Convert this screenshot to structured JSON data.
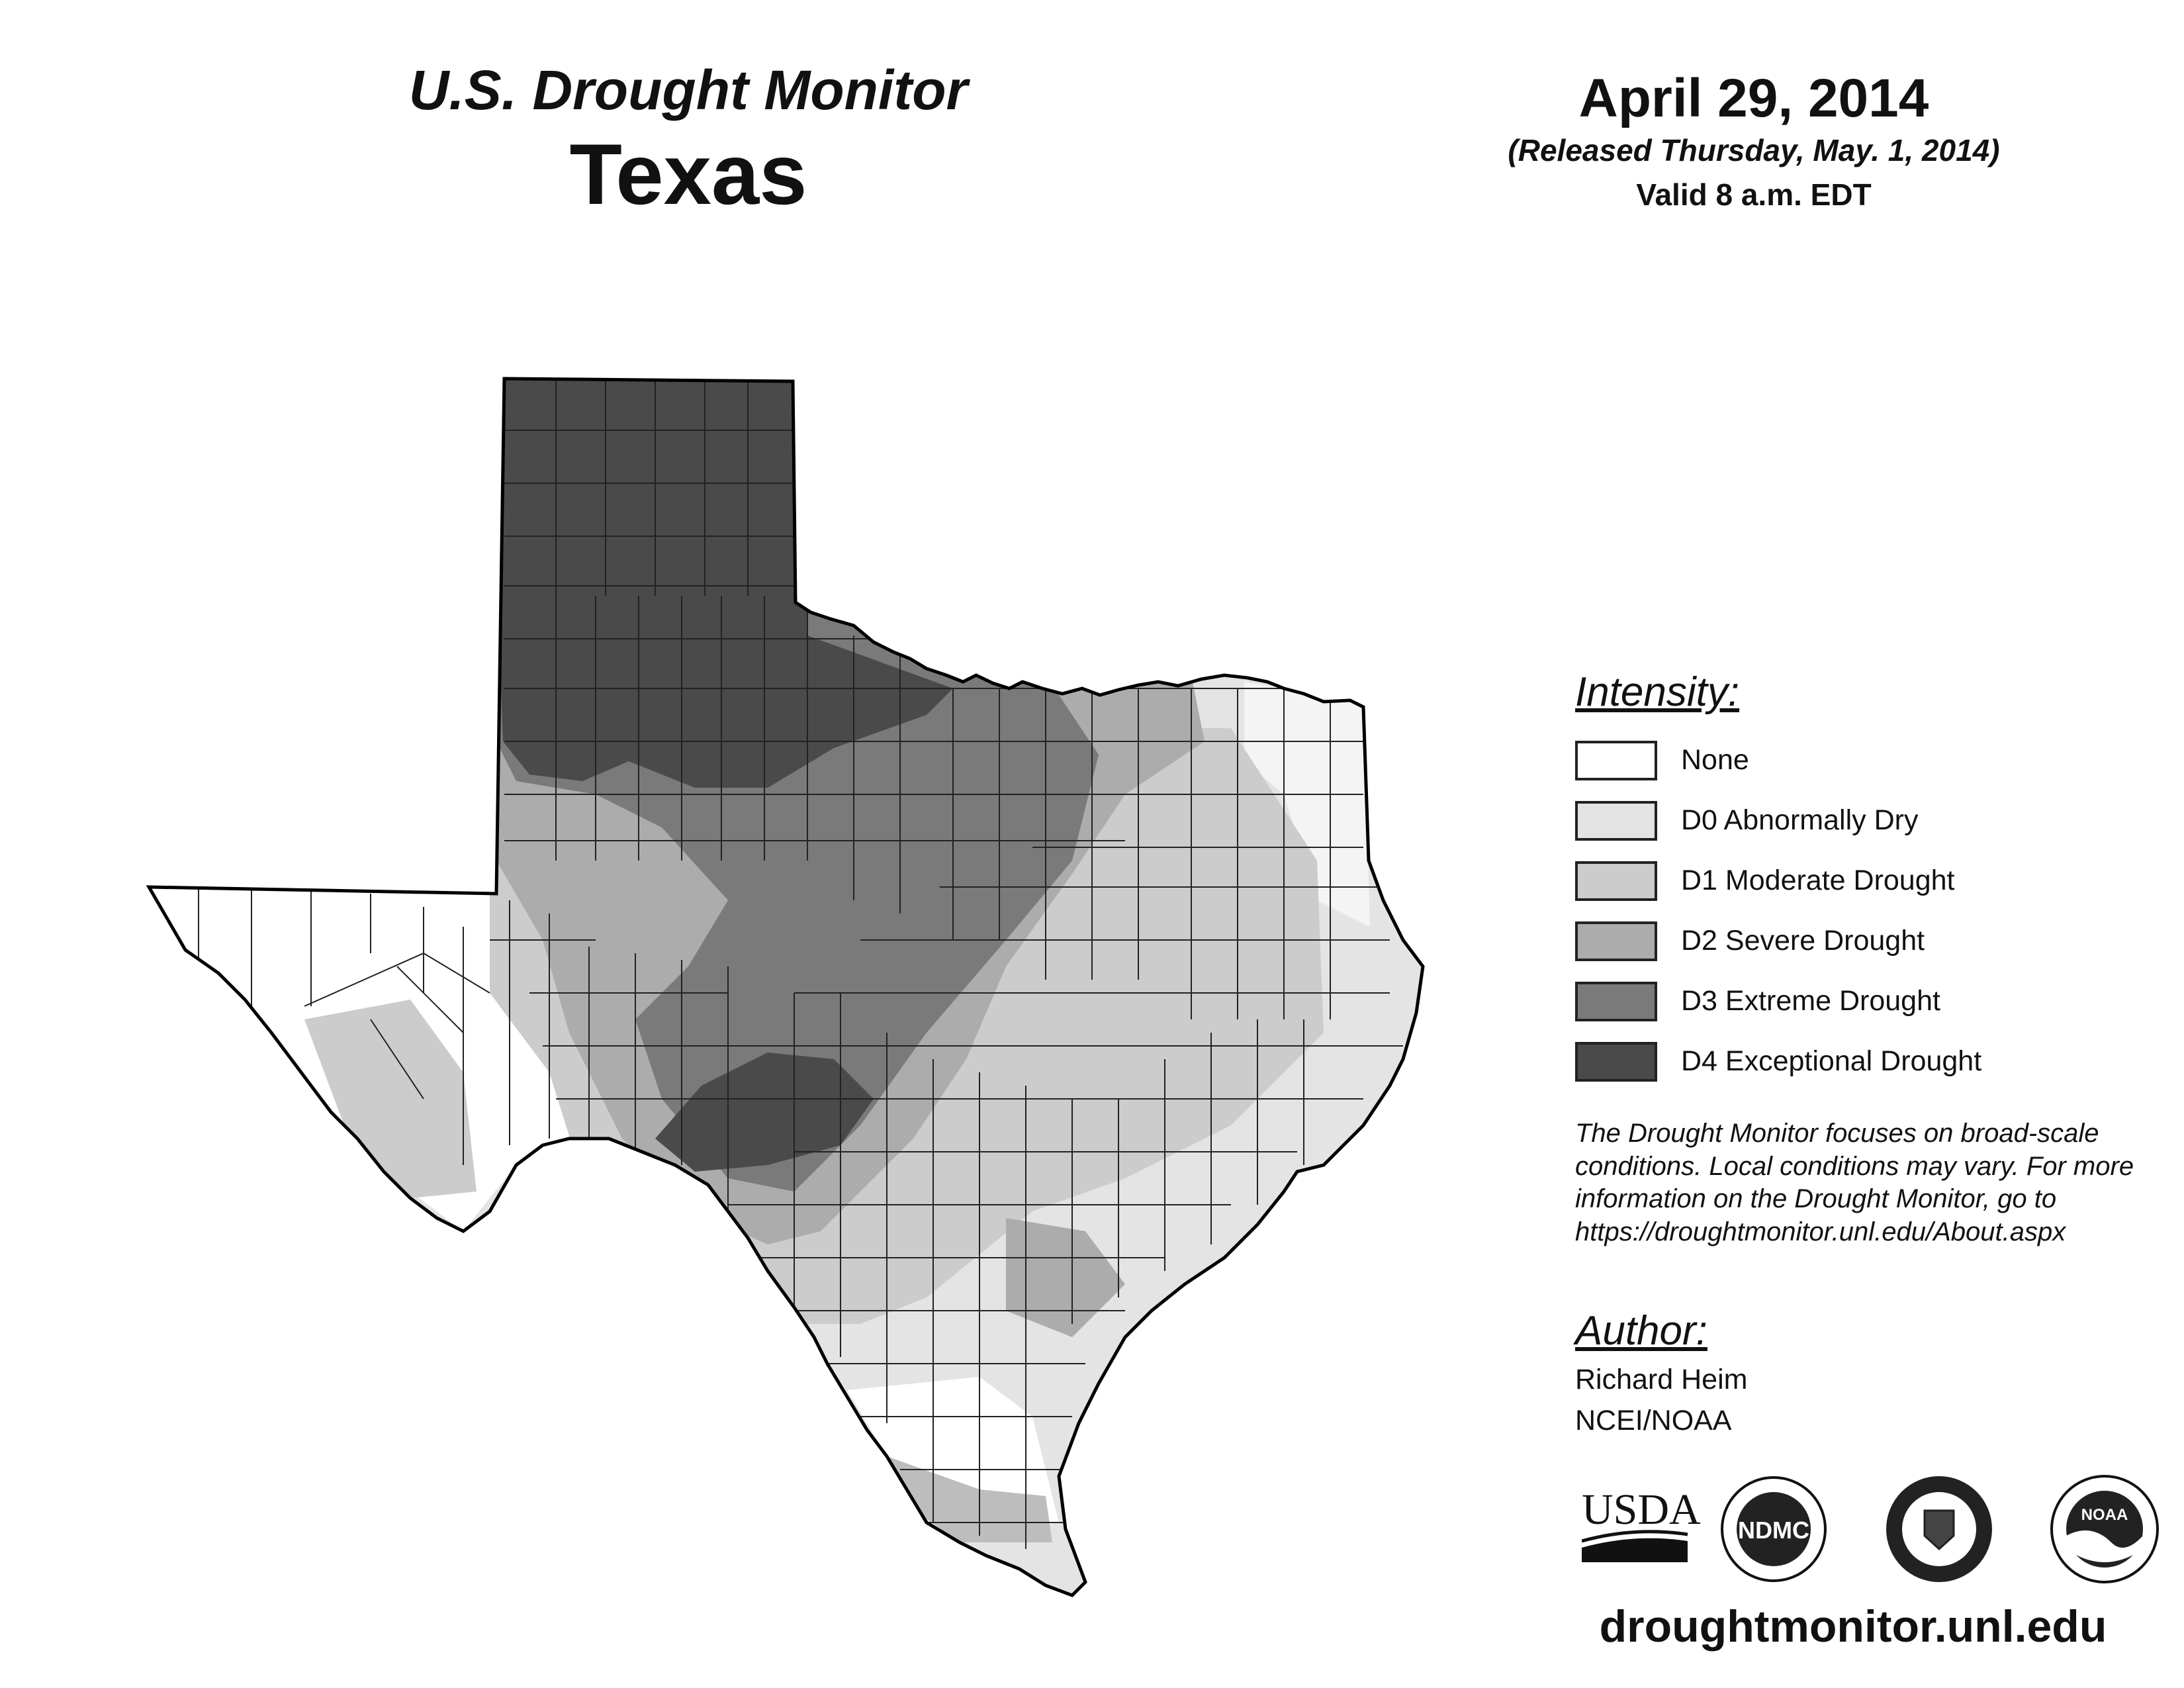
{
  "header": {
    "monitor_title": "U.S. Drought Monitor",
    "state_title": "Texas",
    "date": "April 29, 2014",
    "release_note": "(Released Thursday, May. 1, 2014)",
    "valid_note": "Valid 8 a.m. EDT"
  },
  "legend": {
    "title": "Intensity:",
    "items": [
      {
        "label": "None",
        "color": "#ffffff"
      },
      {
        "label": "D0 Abnormally Dry",
        "color": "#e4e4e4"
      },
      {
        "label": "D1 Moderate Drought",
        "color": "#cccccc"
      },
      {
        "label": "D2 Severe Drought",
        "color": "#acacac"
      },
      {
        "label": "D3 Extreme Drought",
        "color": "#7a7a7a"
      },
      {
        "label": "D4 Exceptional Drought",
        "color": "#4a4a4a"
      }
    ]
  },
  "disclaimer": "The Drought Monitor focuses on broad-scale conditions. Local conditions may vary. For more information on the Drought Monitor, go to https://droughtmonitor.unl.edu/About.aspx",
  "author": {
    "title": "Author:",
    "name": "Richard Heim",
    "org": "NCEI/NOAA"
  },
  "logos": {
    "usda": "USDA",
    "ndmc": "NDMC",
    "noaa": "NOAA",
    "commerce_icon": "department-of-commerce-seal"
  },
  "website": "droughtmonitor.unl.edu"
}
